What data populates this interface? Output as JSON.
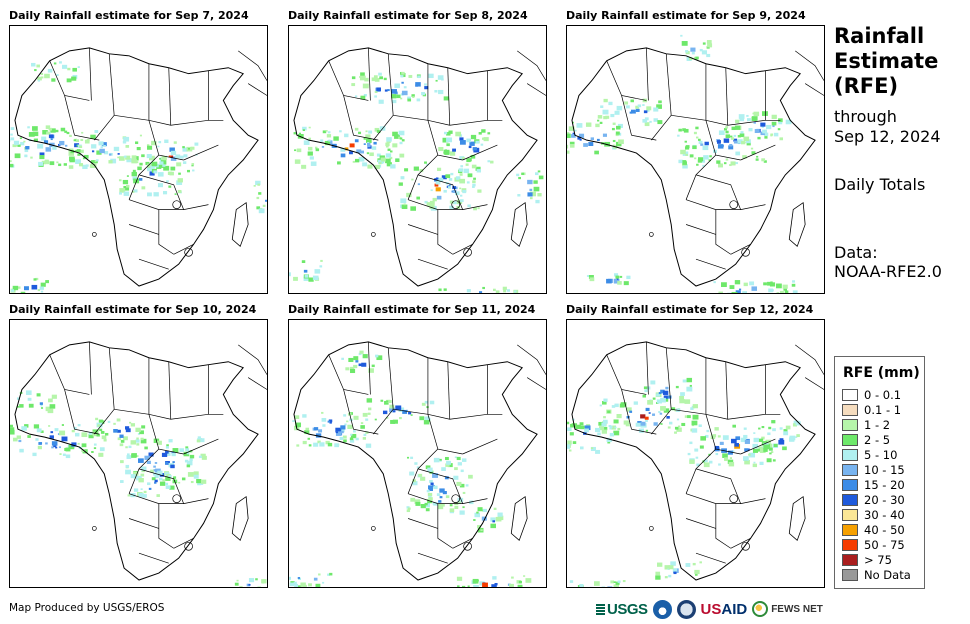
{
  "panels": [
    {
      "title": "Daily Rainfall estimate for Sep 7, 2024",
      "seed": 7,
      "clusters": [
        [
          40,
          120,
          60,
          25
        ],
        [
          95,
          125,
          45,
          20
        ],
        [
          45,
          45,
          30,
          12
        ],
        [
          140,
          150,
          40,
          25
        ],
        [
          160,
          130,
          35,
          20
        ],
        [
          20,
          260,
          25,
          10
        ],
        [
          255,
          170,
          12,
          20
        ]
      ]
    },
    {
      "title": "Daily Rainfall estimate for Sep 8, 2024",
      "seed": 8,
      "clusters": [
        [
          60,
          120,
          70,
          25
        ],
        [
          110,
          60,
          60,
          18
        ],
        [
          150,
          160,
          50,
          30
        ],
        [
          175,
          120,
          35,
          20
        ],
        [
          240,
          160,
          15,
          20
        ],
        [
          10,
          245,
          30,
          12
        ],
        [
          190,
          270,
          50,
          10
        ]
      ]
    },
    {
      "title": "Daily Rainfall estimate for Sep 9, 2024",
      "seed": 9,
      "clusters": [
        [
          20,
          110,
          40,
          20
        ],
        [
          60,
          85,
          40,
          15
        ],
        [
          155,
          120,
          55,
          25
        ],
        [
          190,
          100,
          40,
          18
        ],
        [
          130,
          20,
          20,
          15
        ],
        [
          190,
          265,
          55,
          12
        ],
        [
          40,
          255,
          25,
          10
        ]
      ]
    },
    {
      "title": "Daily Rainfall estimate for Sep 10, 2024",
      "seed": 10,
      "clusters": [
        [
          40,
          120,
          70,
          20
        ],
        [
          150,
          140,
          55,
          30
        ],
        [
          110,
          110,
          35,
          15
        ],
        [
          25,
          80,
          25,
          12
        ],
        [
          140,
          165,
          30,
          15
        ],
        [
          240,
          265,
          25,
          8
        ]
      ]
    },
    {
      "title": "Daily Rainfall estimate for Sep 11, 2024",
      "seed": 11,
      "clusters": [
        [
          40,
          110,
          50,
          22
        ],
        [
          150,
          165,
          40,
          35
        ],
        [
          110,
          90,
          40,
          15
        ],
        [
          70,
          40,
          25,
          12
        ],
        [
          200,
          200,
          20,
          15
        ],
        [
          15,
          260,
          35,
          10
        ],
        [
          200,
          265,
          50,
          10
        ]
      ]
    },
    {
      "title": "Daily Rainfall estimate for Sep 12, 2024",
      "seed": 12,
      "clusters": [
        [
          20,
          115,
          40,
          20
        ],
        [
          80,
          95,
          60,
          22
        ],
        [
          165,
          125,
          55,
          25
        ],
        [
          210,
          115,
          30,
          18
        ],
        [
          100,
          70,
          30,
          15
        ],
        [
          30,
          270,
          45,
          12
        ],
        [
          110,
          250,
          30,
          10
        ],
        [
          280,
          150,
          10,
          10
        ]
      ]
    }
  ],
  "side": {
    "title_lines": [
      "Rainfall",
      "Estimate",
      "(RFE)"
    ],
    "through_label": "through",
    "through_date": "Sep 12, 2024",
    "period": "Daily Totals",
    "data_label": "Data:",
    "data_source": "NOAA-RFE2.0"
  },
  "legend": {
    "title": "RFE (mm)",
    "items": [
      {
        "label": "0 - 0.1",
        "color": "#ffffff"
      },
      {
        "label": "0.1 - 1",
        "color": "#f5dcbe"
      },
      {
        "label": "1 - 2",
        "color": "#b6f5aa"
      },
      {
        "label": "2 - 5",
        "color": "#6ee86a"
      },
      {
        "label": "5 - 10",
        "color": "#b0f0f0"
      },
      {
        "label": "10 - 15",
        "color": "#78b4f0"
      },
      {
        "label": "15 - 20",
        "color": "#3c8ce6"
      },
      {
        "label": "20 - 30",
        "color": "#1e5adc"
      },
      {
        "label": "30 - 40",
        "color": "#fae696"
      },
      {
        "label": "40 - 50",
        "color": "#f5a000"
      },
      {
        "label": "50 - 75",
        "color": "#f53c00"
      },
      {
        "label": "> 75",
        "color": "#aa1e1e"
      },
      {
        "label": "No Data",
        "color": "#999999"
      }
    ]
  },
  "credit": "Map Produced by USGS/EROS",
  "logos": {
    "usgs": "USGS",
    "usaid_us": "US",
    "usaid_aid": "AID",
    "fews": "FEWS NET"
  }
}
